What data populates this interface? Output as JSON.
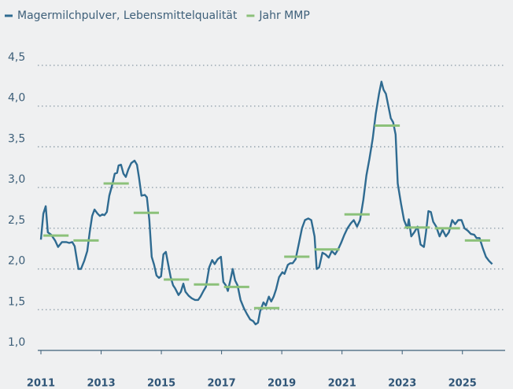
{
  "chart_data": {
    "type": "line",
    "xlim": [
      2011,
      2026
    ],
    "ylim": [
      1.0,
      4.5
    ],
    "xticks": [
      2011,
      2013,
      2015,
      2017,
      2019,
      2021,
      2023,
      2025
    ],
    "yticks": [
      {
        "value": 1.0,
        "label": "1,0"
      },
      {
        "value": 1.5,
        "label": "1,5"
      },
      {
        "value": 2.0,
        "label": "2,0"
      },
      {
        "value": 2.5,
        "label": "2,5"
      },
      {
        "value": 3.0,
        "label": "3,0"
      },
      {
        "value": 3.5,
        "label": "3,5"
      },
      {
        "value": 4.0,
        "label": "4,0"
      },
      {
        "value": 4.5,
        "label": "4,5"
      }
    ],
    "grid": true,
    "series": [
      {
        "name": "Magermilchpulver, Lebensmittelqualität",
        "color": "#2f6b91",
        "style": "line",
        "x": [
          2011.0,
          2011.08,
          2011.16,
          2011.23,
          2011.34,
          2011.47,
          2011.57,
          2011.7,
          2011.84,
          2011.94,
          2012.04,
          2012.12,
          2012.2,
          2012.25,
          2012.33,
          2012.44,
          2012.54,
          2012.62,
          2012.7,
          2012.78,
          2012.88,
          2012.96,
          2013.04,
          2013.11,
          2013.19,
          2013.27,
          2013.38,
          2013.45,
          2013.53,
          2013.58,
          2013.66,
          2013.74,
          2013.82,
          2013.9,
          2014.0,
          2014.11,
          2014.19,
          2014.26,
          2014.34,
          2014.45,
          2014.52,
          2014.6,
          2014.68,
          2014.76,
          2014.84,
          2014.92,
          2014.99,
          2015.07,
          2015.15,
          2015.23,
          2015.31,
          2015.39,
          2015.46,
          2015.57,
          2015.65,
          2015.73,
          2015.8,
          2015.91,
          2016.01,
          2016.12,
          2016.22,
          2016.3,
          2016.4,
          2016.48,
          2016.59,
          2016.69,
          2016.77,
          2016.87,
          2016.98,
          2017.06,
          2017.14,
          2017.21,
          2017.29,
          2017.37,
          2017.45,
          2017.53,
          2017.63,
          2017.74,
          2017.84,
          2017.95,
          2018.05,
          2018.13,
          2018.21,
          2018.28,
          2018.39,
          2018.47,
          2018.57,
          2018.65,
          2018.73,
          2018.81,
          2018.91,
          2019.02,
          2019.09,
          2019.2,
          2019.28,
          2019.36,
          2019.46,
          2019.56,
          2019.67,
          2019.77,
          2019.88,
          2019.98,
          2020.09,
          2020.16,
          2020.24,
          2020.35,
          2020.45,
          2020.56,
          2020.66,
          2020.77,
          2020.87,
          2020.97,
          2021.08,
          2021.18,
          2021.29,
          2021.39,
          2021.5,
          2021.6,
          2021.71,
          2021.81,
          2021.91,
          2022.02,
          2022.12,
          2022.23,
          2022.31,
          2022.38,
          2022.46,
          2022.54,
          2022.62,
          2022.7,
          2022.78,
          2022.85,
          2022.96,
          2023.06,
          2023.17,
          2023.22,
          2023.3,
          2023.4,
          2023.51,
          2023.61,
          2023.72,
          2023.79,
          2023.87,
          2023.95,
          2024.03,
          2024.13,
          2024.24,
          2024.34,
          2024.45,
          2024.55,
          2024.66,
          2024.76,
          2024.86,
          2024.97,
          2025.07,
          2025.18,
          2025.28,
          2025.39,
          2025.47,
          2025.57,
          2025.68,
          2025.78,
          2025.88,
          2025.99
        ],
        "values": [
          2.36,
          2.68,
          2.77,
          2.45,
          2.42,
          2.35,
          2.27,
          2.33,
          2.33,
          2.32,
          2.33,
          2.28,
          2.1,
          2.0,
          2.0,
          2.1,
          2.22,
          2.45,
          2.65,
          2.73,
          2.68,
          2.65,
          2.67,
          2.66,
          2.7,
          2.9,
          3.05,
          3.17,
          3.18,
          3.27,
          3.28,
          3.17,
          3.13,
          3.22,
          3.3,
          3.33,
          3.28,
          3.12,
          2.9,
          2.91,
          2.88,
          2.6,
          2.15,
          2.05,
          1.92,
          1.89,
          1.91,
          2.18,
          2.21,
          2.05,
          1.9,
          1.8,
          1.76,
          1.68,
          1.72,
          1.82,
          1.72,
          1.67,
          1.64,
          1.62,
          1.62,
          1.66,
          1.73,
          1.78,
          2.02,
          2.11,
          2.06,
          2.12,
          2.15,
          1.84,
          1.8,
          1.73,
          1.86,
          2.0,
          1.86,
          1.8,
          1.62,
          1.52,
          1.45,
          1.38,
          1.36,
          1.32,
          1.34,
          1.48,
          1.59,
          1.55,
          1.66,
          1.6,
          1.66,
          1.75,
          1.9,
          1.96,
          1.94,
          2.05,
          2.07,
          2.07,
          2.12,
          2.3,
          2.5,
          2.6,
          2.62,
          2.6,
          2.4,
          2.0,
          2.02,
          2.2,
          2.18,
          2.14,
          2.22,
          2.18,
          2.24,
          2.32,
          2.42,
          2.5,
          2.56,
          2.6,
          2.52,
          2.6,
          2.85,
          3.15,
          3.35,
          3.6,
          3.9,
          4.15,
          4.3,
          4.2,
          4.15,
          4.0,
          3.85,
          3.8,
          3.65,
          3.05,
          2.8,
          2.6,
          2.5,
          2.61,
          2.4,
          2.45,
          2.52,
          2.3,
          2.27,
          2.45,
          2.71,
          2.7,
          2.58,
          2.52,
          2.4,
          2.48,
          2.4,
          2.45,
          2.6,
          2.55,
          2.6,
          2.6,
          2.5,
          2.47,
          2.43,
          2.42,
          2.38,
          2.38,
          2.25,
          2.15,
          2.1,
          2.06
        ]
      },
      {
        "name": "Jahr MMP",
        "color": "#8cc17a",
        "style": "segment",
        "x": [
          2011,
          2012,
          2013,
          2014,
          2015,
          2016,
          2017,
          2018,
          2019,
          2020,
          2021,
          2022,
          2023,
          2024,
          2025
        ],
        "values": [
          2.41,
          2.35,
          3.05,
          2.69,
          1.87,
          1.81,
          1.78,
          1.52,
          2.15,
          2.24,
          2.67,
          3.76,
          2.51,
          2.5,
          2.35
        ]
      }
    ]
  }
}
